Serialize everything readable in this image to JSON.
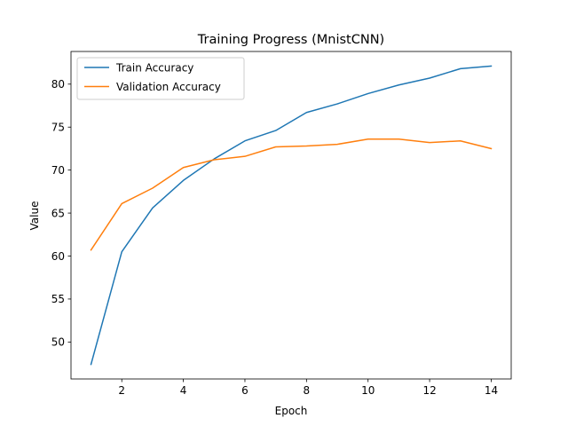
{
  "chart_data": {
    "type": "line",
    "title": "Training Progress (MnistCNN)",
    "xlabel": "Epoch",
    "ylabel": "Value",
    "xlim": [
      0.35,
      14.65
    ],
    "ylim": [
      45.7,
      83.8
    ],
    "x_ticks": [
      2,
      4,
      6,
      8,
      10,
      12,
      14
    ],
    "y_ticks": [
      50,
      55,
      60,
      65,
      70,
      75,
      80
    ],
    "grid": false,
    "legend_position": "upper-left",
    "x": [
      1,
      2,
      3,
      4,
      5,
      6,
      7,
      8,
      9,
      10,
      11,
      12,
      13,
      14
    ],
    "series": [
      {
        "name": "Train Accuracy",
        "color": "#1f77b4",
        "values": [
          47.4,
          60.5,
          65.6,
          68.8,
          71.3,
          73.4,
          74.6,
          76.7,
          77.7,
          78.9,
          79.9,
          80.7,
          81.8,
          82.1
        ]
      },
      {
        "name": "Validation Accuracy",
        "color": "#ff7f0e",
        "values": [
          60.7,
          66.1,
          67.9,
          70.3,
          71.2,
          71.6,
          72.7,
          72.8,
          73.0,
          73.6,
          73.6,
          73.2,
          73.4,
          72.5
        ]
      }
    ]
  }
}
